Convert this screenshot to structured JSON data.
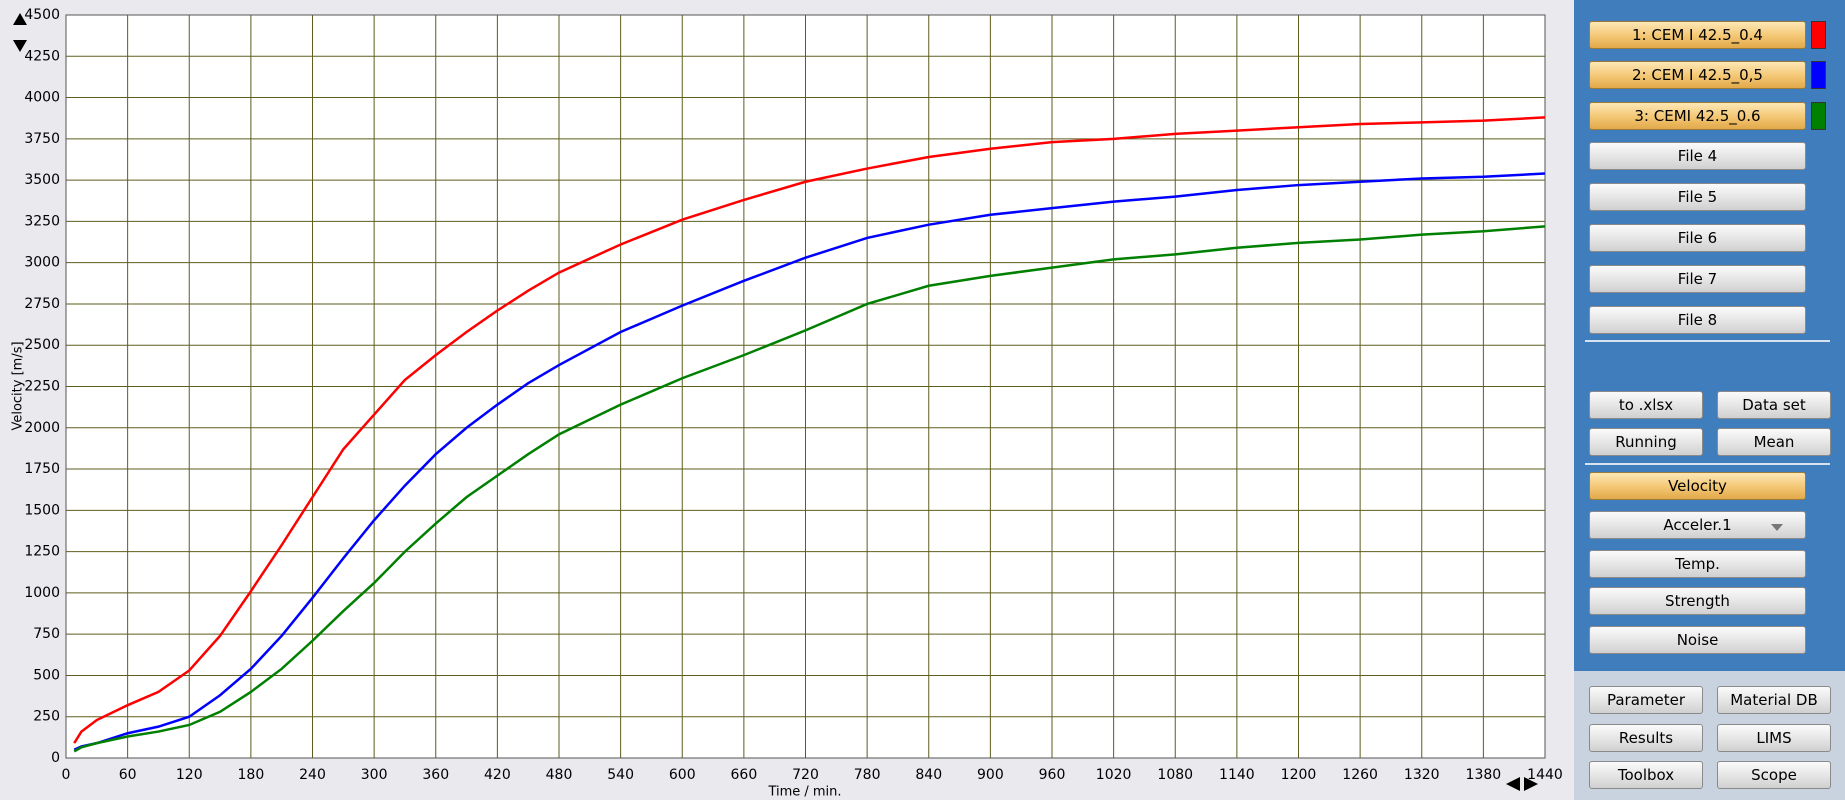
{
  "chart_data": {
    "type": "line",
    "xlabel": "Time / min.",
    "ylabel": "Velocity [m/s]",
    "x": [
      8,
      15,
      30,
      60,
      90,
      120,
      150,
      180,
      210,
      240,
      270,
      300,
      330,
      360,
      390,
      420,
      450,
      480,
      540,
      600,
      660,
      720,
      780,
      840,
      900,
      960,
      1020,
      1080,
      1140,
      1200,
      1260,
      1320,
      1380,
      1440
    ],
    "series": [
      {
        "name": "1: CEM I 42.5_0.4",
        "color": "#ff0000",
        "values": [
          90,
          160,
          230,
          320,
          400,
          530,
          740,
          1010,
          1290,
          1580,
          1870,
          2080,
          2290,
          2440,
          2580,
          2710,
          2830,
          2940,
          3110,
          3260,
          3380,
          3490,
          3570,
          3640,
          3690,
          3730,
          3750,
          3780,
          3800,
          3820,
          3840,
          3850,
          3860,
          3880
        ]
      },
      {
        "name": "2: CEM I 42.5_0,5",
        "color": "#0000ff",
        "values": [
          50,
          70,
          90,
          150,
          190,
          250,
          380,
          540,
          740,
          970,
          1210,
          1440,
          1650,
          1840,
          2000,
          2140,
          2270,
          2380,
          2580,
          2740,
          2890,
          3030,
          3150,
          3230,
          3290,
          3330,
          3370,
          3400,
          3440,
          3470,
          3490,
          3510,
          3520,
          3540
        ]
      },
      {
        "name": "3: CEMI 42.5_0.6",
        "color": "#008000",
        "values": [
          40,
          65,
          90,
          130,
          160,
          200,
          280,
          400,
          540,
          710,
          890,
          1060,
          1250,
          1420,
          1580,
          1710,
          1840,
          1960,
          2140,
          2300,
          2440,
          2590,
          2750,
          2860,
          2920,
          2970,
          3020,
          3050,
          3090,
          3120,
          3140,
          3170,
          3190,
          3220
        ]
      }
    ],
    "xlim": [
      0,
      1440
    ],
    "xticks": [
      0,
      60,
      120,
      180,
      240,
      300,
      360,
      420,
      480,
      540,
      600,
      660,
      720,
      780,
      840,
      900,
      960,
      1020,
      1080,
      1140,
      1200,
      1260,
      1320,
      1380,
      1440
    ],
    "ylim": [
      0,
      4500
    ],
    "yticks": [
      0,
      250,
      500,
      750,
      1000,
      1250,
      1500,
      1750,
      2000,
      2250,
      2500,
      2750,
      3000,
      3250,
      3500,
      3750,
      4000,
      4250,
      4500
    ],
    "grid": true
  },
  "panel": {
    "files": [
      "File 4",
      "File 5",
      "File 6",
      "File 7",
      "File 8"
    ],
    "tools": [
      "to .xlsx",
      "Data set",
      "Running",
      "Mean"
    ],
    "modes": [
      "Velocity",
      "Acceler.1",
      "Temp.",
      "Strength",
      "Noise"
    ],
    "bottom": [
      "Parameter",
      "Material DB",
      "Results",
      "LIMS",
      "Toolbox",
      "Scope"
    ]
  }
}
